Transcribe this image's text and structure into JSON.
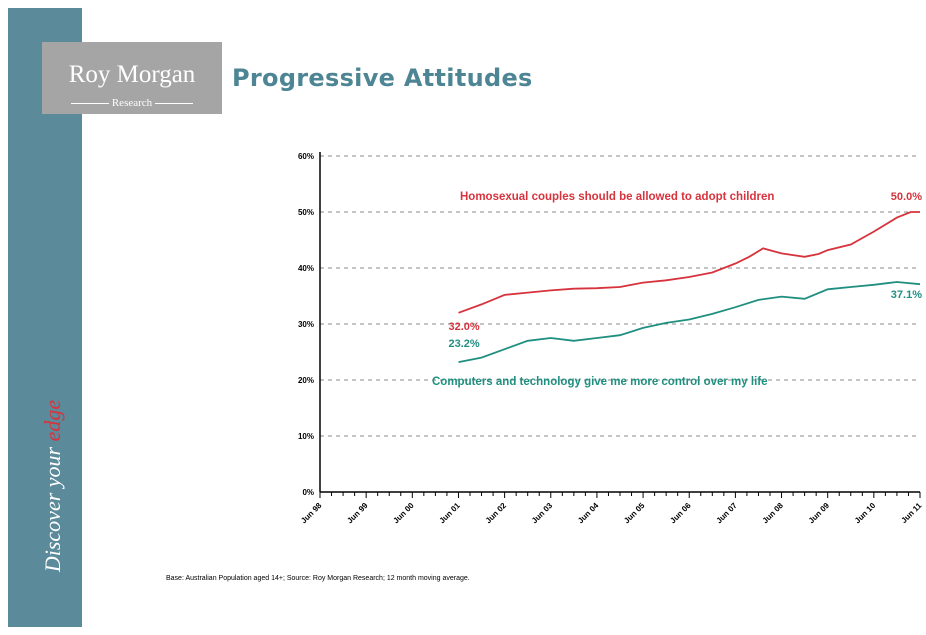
{
  "sidebar": {
    "tagline_prefix": "Discover your ",
    "tagline_accent": "edge"
  },
  "logo": {
    "name": "Roy Morgan",
    "subtitle": "Research"
  },
  "title": "Progressive Attitudes",
  "footnote": "Base: Australian Population aged 14+; Source: Roy Morgan Research; 12 month moving average.",
  "colors": {
    "sidebar": "#5b8a9a",
    "title": "#4d8595",
    "series_red": "#d7333d",
    "series_teal": "#1f8f80"
  },
  "chart_data": {
    "type": "line",
    "ylim": [
      0,
      60
    ],
    "yticks": [
      "0%",
      "10%",
      "20%",
      "30%",
      "40%",
      "50%",
      "60%"
    ],
    "x_labels": [
      "Jun 98",
      "Jun 99",
      "Jun 00",
      "Jun 01",
      "Jun 02",
      "Jun 03",
      "Jun 04",
      "Jun 05",
      "Jun 06",
      "Jun 07",
      "Jun 08",
      "Jun 09",
      "Jun 10",
      "Jun 11"
    ],
    "grid": true,
    "series": [
      {
        "name": "Homosexual couples should be allowed to adopt children",
        "color": "#d7333d",
        "start_label": "32.0%",
        "end_label": "50.0%",
        "points": [
          [
            3,
            32.0
          ],
          [
            3.5,
            33.5
          ],
          [
            4,
            35.2
          ],
          [
            4.5,
            35.6
          ],
          [
            5,
            36.0
          ],
          [
            5.5,
            36.3
          ],
          [
            6,
            36.4
          ],
          [
            6.5,
            36.6
          ],
          [
            7,
            37.4
          ],
          [
            7.5,
            37.8
          ],
          [
            8,
            38.4
          ],
          [
            8.5,
            39.2
          ],
          [
            9,
            40.8
          ],
          [
            9.3,
            42.0
          ],
          [
            9.6,
            43.5
          ],
          [
            10,
            42.6
          ],
          [
            10.5,
            42.0
          ],
          [
            10.8,
            42.5
          ],
          [
            11,
            43.2
          ],
          [
            11.5,
            44.2
          ],
          [
            12,
            46.5
          ],
          [
            12.5,
            49.0
          ],
          [
            12.8,
            50.0
          ],
          [
            13,
            50.0
          ]
        ]
      },
      {
        "name": "Computers and technology give me more control over my life",
        "color": "#1f8f80",
        "start_label": "23.2%",
        "end_label": "37.1%",
        "points": [
          [
            3,
            23.2
          ],
          [
            3.5,
            24.0
          ],
          [
            4,
            25.5
          ],
          [
            4.5,
            27.0
          ],
          [
            5,
            27.5
          ],
          [
            5.5,
            27.0
          ],
          [
            6,
            27.5
          ],
          [
            6.5,
            28.0
          ],
          [
            7,
            29.3
          ],
          [
            7.5,
            30.2
          ],
          [
            8,
            30.8
          ],
          [
            8.5,
            31.8
          ],
          [
            9,
            33.0
          ],
          [
            9.5,
            34.3
          ],
          [
            10,
            34.9
          ],
          [
            10.5,
            34.5
          ],
          [
            11,
            36.2
          ],
          [
            11.5,
            36.6
          ],
          [
            12,
            37.0
          ],
          [
            12.5,
            37.5
          ],
          [
            13,
            37.1
          ]
        ]
      }
    ]
  }
}
